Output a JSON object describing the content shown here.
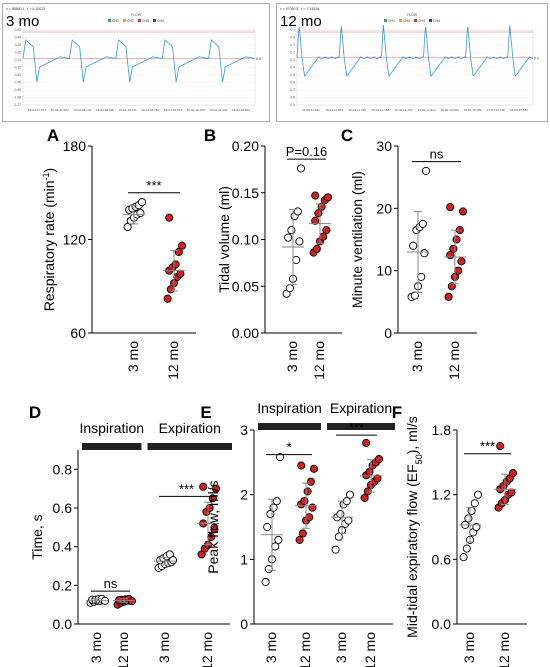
{
  "traces": [
    {
      "label": "3 mo",
      "header_text": "x = 95860.1, Y = 6.20072",
      "plot_title": "FLOW",
      "legend": [
        "CH1",
        "CH2",
        "CH3",
        "CH4"
      ],
      "legend_colors": [
        "#3aa05a",
        "#e3a23b",
        "#c33a3a",
        "#444444"
      ],
      "y_ticks": [
        "0.63",
        "0.44",
        "0.25",
        "0.06",
        "-0.13",
        "-0.32",
        "-0.51",
        "-0.70",
        "-0.89",
        "-1.08",
        "-1.27"
      ],
      "x_ticks": [
        "15:04:47.677",
        "15:04:47.883",
        "15:04:48.109",
        "15:04:48.325",
        "15:04:48.541",
        "15:04:48.757",
        "15:04:48.973",
        "15:04:49.189",
        "15:04:49.405",
        "15:04:49.621"
      ],
      "ref_label": "0.0",
      "trace_color": "#3a9ad9",
      "ref_color": "#e26a5a"
    },
    {
      "label": "12 mo",
      "header_text": "x = 97080.5, Y = 7.14526",
      "plot_title": "FLOW",
      "legend": [
        "CH1",
        "CH2",
        "CH3",
        "CH4"
      ],
      "legend_colors": [
        "#3aa05a",
        "#e3a23b",
        "#c33a3a",
        "#444444"
      ],
      "y_ticks": [
        "0.1",
        "0.0",
        "-0.1",
        "-0.2",
        "-0.3",
        "-0.4",
        "-0.5",
        "-0.6",
        "-0.7",
        "-0.8",
        "-0.9"
      ],
      "x_ticks": [
        "15:04:11.462",
        "15:04:11.694",
        "15:04:11.926",
        "15:04:12.158",
        "15:04:12.390",
        "15:04:12.622",
        "15:04:12.854",
        "15:04:13.086",
        "15:04:13.318",
        "15:04:13.550"
      ],
      "ref_label": "0.0",
      "trace_color": "#3a9ad9",
      "ref_color": "#e26a5a"
    }
  ],
  "chart_data": [
    {
      "panel": "A",
      "type": "scatter",
      "ylabel": "Respiratory rate (min-1)",
      "ylabel_main": "Respiratory rate (min",
      "ylabel_sup": "-1",
      "ylabel_tail": ")",
      "ylim": [
        60,
        180
      ],
      "yticks": [
        60,
        120,
        180
      ],
      "ytick_labels": [
        "60",
        "120",
        "180"
      ],
      "categories": [
        "3 mo",
        "12 mo"
      ],
      "series": [
        {
          "values": [
            128,
            132,
            134,
            136,
            137,
            139,
            140,
            141,
            142,
            144
          ],
          "mean": 136,
          "sd": 6
        },
        {
          "values": [
            82,
            88,
            92,
            96,
            98,
            100,
            102,
            104,
            112,
            116,
            134
          ],
          "mean": 100,
          "sd": 13
        }
      ],
      "significance": [
        {
          "text": "***",
          "y": 150
        }
      ]
    },
    {
      "panel": "B",
      "type": "scatter",
      "ylabel": "Tidal volume (ml)",
      "ylim": [
        0,
        0.2
      ],
      "yticks": [
        0,
        0.05,
        0.1,
        0.15,
        0.2
      ],
      "ytick_labels": [
        "0.00",
        "0.05",
        "0.10",
        "0.15",
        "0.20"
      ],
      "categories": [
        "3 mo",
        "12 mo"
      ],
      "series": [
        {
          "values": [
            0.042,
            0.048,
            0.058,
            0.078,
            0.098,
            0.102,
            0.11,
            0.125,
            0.13,
            0.176
          ],
          "mean": 0.092,
          "sd": 0.04
        },
        {
          "values": [
            0.086,
            0.09,
            0.098,
            0.103,
            0.11,
            0.12,
            0.128,
            0.135,
            0.142,
            0.145,
            0.147
          ],
          "mean": 0.117,
          "sd": 0.021
        }
      ],
      "significance": [
        {
          "text": "P=0.16",
          "y": 0.186
        }
      ]
    },
    {
      "panel": "C",
      "type": "scatter",
      "ylabel": "Minute ventilation (ml)",
      "ylim": [
        0,
        30
      ],
      "yticks": [
        0,
        10,
        20,
        30
      ],
      "ytick_labels": [
        "0",
        "10",
        "20",
        "30"
      ],
      "categories": [
        "3 mo",
        "12 mo"
      ],
      "series": [
        {
          "values": [
            5.8,
            6.0,
            7.5,
            9.0,
            12.8,
            14.0,
            16.5,
            17.0,
            17.5,
            26.0
          ],
          "mean": 13,
          "sd": 6.5
        },
        {
          "values": [
            5.8,
            7.5,
            9.0,
            10.0,
            11.5,
            12.5,
            13.5,
            15.0,
            16.5,
            19.5,
            20.2
          ],
          "mean": 12.2,
          "sd": 4.3
        }
      ],
      "significance": [
        {
          "text": "ns",
          "y": 27.5
        }
      ]
    },
    {
      "panel": "D",
      "type": "scatter",
      "ylabel": "Time, s",
      "ylim": [
        0,
        0.9
      ],
      "yticks": [
        0,
        0.2,
        0.4,
        0.6,
        0.8
      ],
      "ytick_labels": [
        "0.0",
        "0.2",
        "0.4",
        "0.6",
        "0.8"
      ],
      "groups": [
        "Inspiration",
        "Expiration"
      ],
      "categories": [
        "3 mo",
        "12 mo",
        "3 mo",
        "12 mo"
      ],
      "series": [
        {
          "values": [
            0.11,
            0.115,
            0.12,
            0.12,
            0.122,
            0.125,
            0.125,
            0.128,
            0.13,
            0.12
          ],
          "mean": 0.121,
          "sd": 0.01
        },
        {
          "values": [
            0.1,
            0.11,
            0.115,
            0.12,
            0.12,
            0.122,
            0.125,
            0.128,
            0.13,
            0.118,
            0.124
          ],
          "mean": 0.121,
          "sd": 0.01
        },
        {
          "values": [
            0.29,
            0.3,
            0.31,
            0.315,
            0.32,
            0.33,
            0.34,
            0.35,
            0.36,
            0.33
          ],
          "mean": 0.325,
          "sd": 0.02
        },
        {
          "values": [
            0.36,
            0.39,
            0.41,
            0.45,
            0.49,
            0.52,
            0.58,
            0.6,
            0.65,
            0.7,
            0.71
          ],
          "mean": 0.52,
          "sd": 0.11
        }
      ],
      "significance": [
        {
          "text": "ns",
          "y": 0.17,
          "from": 0,
          "to": 1
        },
        {
          "text": "***",
          "y": 0.66,
          "from": 2,
          "to": 3
        }
      ]
    },
    {
      "panel": "E",
      "type": "scatter",
      "ylabel": "Peak flow, ml/s",
      "ylim": [
        0,
        3
      ],
      "yticks": [
        0,
        1,
        2,
        3
      ],
      "ytick_labels": [
        "0",
        "1",
        "2",
        "3"
      ],
      "groups": [
        "Inspiration",
        "Expiration"
      ],
      "categories": [
        "3 mo",
        "12 mo",
        "3 mo",
        "12 mo"
      ],
      "series": [
        {
          "values": [
            0.65,
            0.85,
            1.0,
            1.2,
            1.3,
            1.5,
            1.7,
            1.8,
            1.9,
            2.58
          ],
          "mean": 1.38,
          "sd": 0.55
        },
        {
          "values": [
            1.3,
            1.4,
            1.6,
            1.65,
            1.8,
            1.85,
            1.9,
            2.05,
            2.2,
            2.4,
            2.45
          ],
          "mean": 1.83,
          "sd": 0.35
        },
        {
          "values": [
            1.15,
            1.35,
            1.45,
            1.55,
            1.6,
            1.65,
            1.7,
            1.85,
            1.9,
            2.0
          ],
          "mean": 1.65,
          "sd": 0.25
        },
        {
          "values": [
            1.95,
            2.05,
            2.15,
            2.2,
            2.25,
            2.3,
            2.35,
            2.45,
            2.5,
            2.55,
            2.8
          ],
          "mean": 2.29,
          "sd": 0.25
        }
      ],
      "significance": [
        {
          "text": "*",
          "y": 2.62,
          "from": 0,
          "to": 1
        },
        {
          "text": "***",
          "y": 2.92,
          "from": 2,
          "to": 3
        }
      ]
    },
    {
      "panel": "F",
      "type": "scatter",
      "ylabel": "Mid-tidal expiratory flow (EF50), ml/s",
      "ylabel_main": "Mid-tidal expiratory flow (EF",
      "ylabel_sub": "50",
      "ylabel_tail": "), ml/s",
      "ylim": [
        0,
        1.8
      ],
      "yticks": [
        0,
        0.6,
        1.2,
        1.8
      ],
      "ytick_labels": [
        "0.0",
        "0.6",
        "1.2",
        "1.8"
      ],
      "categories": [
        "3 mo",
        "12 mo"
      ],
      "series": [
        {
          "values": [
            0.62,
            0.7,
            0.78,
            0.85,
            0.9,
            0.92,
            0.98,
            1.05,
            1.12,
            1.2
          ],
          "mean": 0.92,
          "sd": 0.16
        },
        {
          "values": [
            1.08,
            1.12,
            1.15,
            1.2,
            1.22,
            1.25,
            1.28,
            1.32,
            1.35,
            1.4,
            1.65
          ],
          "mean": 1.25,
          "sd": 0.14
        }
      ],
      "significance": [
        {
          "text": "***",
          "y": 1.58
        }
      ]
    }
  ],
  "colors": {
    "group1_fill": "#ffffff",
    "group2_fill": "#d42020",
    "marker_stroke": "#000000",
    "errorbar": "#888888",
    "group_bar": "#222222"
  }
}
